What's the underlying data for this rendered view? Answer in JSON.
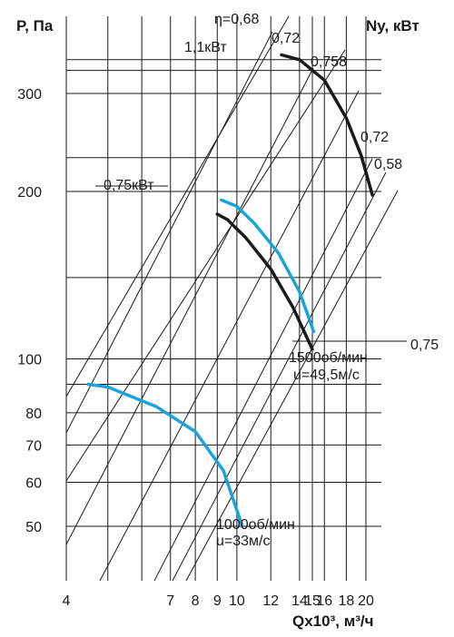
{
  "chart_data": {
    "type": "line",
    "y_axis_title": "P, Па",
    "right_axis_title": "Ny, кВт",
    "x_axis_title": "Qx10³, м³/ч",
    "x_scale": "log",
    "y_scale": "log",
    "xlim": [
      4,
      23
    ],
    "ylim": [
      40,
      375
    ],
    "x_ticks": [
      4,
      7,
      8,
      9,
      10,
      12,
      14,
      15,
      16,
      18,
      20
    ],
    "x_tick_labels": [
      "4",
      "7",
      "8",
      "9",
      "10",
      "12",
      "14",
      "15",
      "16",
      "18",
      "20"
    ],
    "y_ticks": [
      50,
      60,
      70,
      80,
      100,
      200,
      300
    ],
    "y_tick_labels": [
      "50",
      "60",
      "70",
      "80",
      "100",
      "200",
      "300"
    ],
    "grid": true,
    "colors": {
      "blue": "#1ba3dc",
      "black": "#1a1a1a"
    },
    "efficiency_labels": [
      "η=0,68",
      "0,72",
      "0,758",
      "0,72",
      "0,58",
      "0,75"
    ],
    "series": [
      {
        "name": "",
        "speed": "1500об/мин",
        "tip_speed": "u=49,5м/с",
        "color": "#1a1a1a",
        "x": [
          12.7,
          14,
          16,
          18,
          19.5,
          20.7
        ],
        "y": [
          352,
          345,
          317,
          271,
          232,
          197
        ]
      },
      {
        "name": "",
        "color": "#1a1a1a",
        "x": [
          9,
          9.5,
          10.5,
          12,
          13.5,
          15
        ],
        "y": [
          182,
          178,
          165,
          145,
          124,
          104
        ]
      },
      {
        "name": "",
        "color": "#1ba3dc",
        "x": [
          9.2,
          10,
          11,
          12.5,
          14,
          15.1
        ],
        "y": [
          193,
          188,
          175,
          155,
          132,
          112
        ]
      },
      {
        "name": "",
        "speed": "1000об/мин",
        "tip_speed": "u=33м/с",
        "color": "#1ba3dc",
        "x": [
          4.5,
          5,
          6.5,
          8,
          9.3,
          10.3
        ],
        "y": [
          90,
          89,
          82,
          74,
          63,
          50
        ]
      }
    ],
    "power_labels": [
      "1,1кВт",
      "0,75кВт"
    ]
  }
}
